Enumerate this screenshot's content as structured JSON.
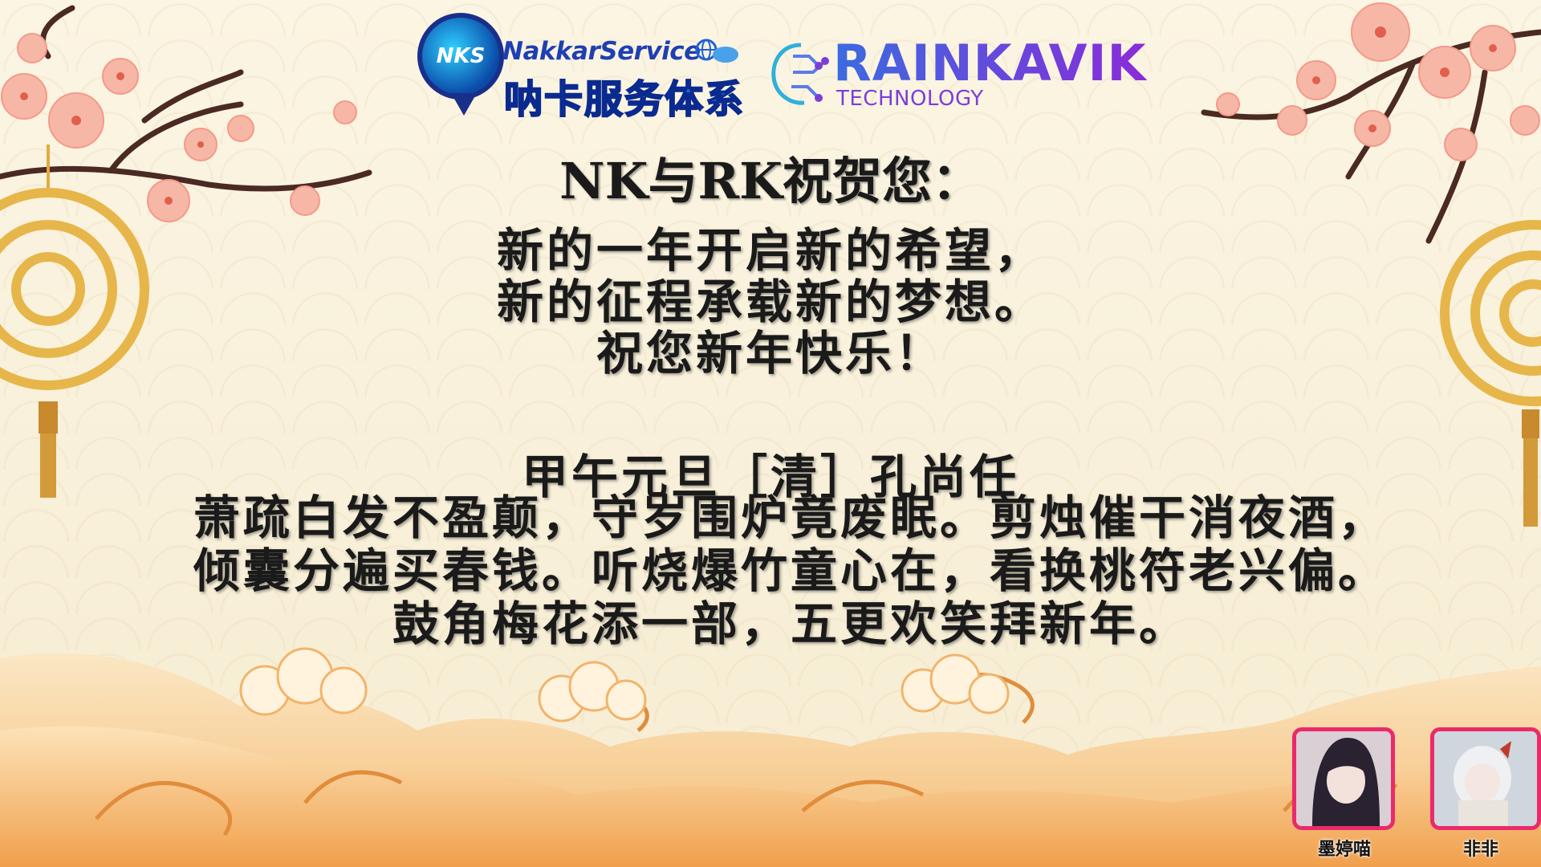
{
  "brand_nks": {
    "badge": "NKS",
    "name_en": "NakkarService",
    "name_cn": "呐卡服务体系"
  },
  "brand_rk": {
    "name": "RAINKAVIK",
    "sub": "TECHNOLOGY"
  },
  "headline": "NK与RK祝贺您：",
  "greeting": [
    "新的一年开启新的希望，",
    "新的征程承载新的梦想。",
    "祝您新年快乐！"
  ],
  "poem": {
    "title": "甲午元旦［清］孔尚任",
    "body": "萧疏白发不盈颠，守岁围炉竟废眠。剪烛催干消夜酒，倾囊分遍买春钱。听烧爆竹童心在，看换桃符老兴偏。鼓角梅花添一部，五更欢笑拜新年。"
  },
  "participants": [
    {
      "name": "墨婷喵",
      "color": "#ea2a6a"
    },
    {
      "name": "非非",
      "color": "#ea2a6a"
    }
  ],
  "colors": {
    "text": "#1a1a1a",
    "background": "#f8f0da",
    "blossom": "#f6b6a8",
    "gold": "#e7b64a",
    "cloud": "#f2a65a"
  }
}
